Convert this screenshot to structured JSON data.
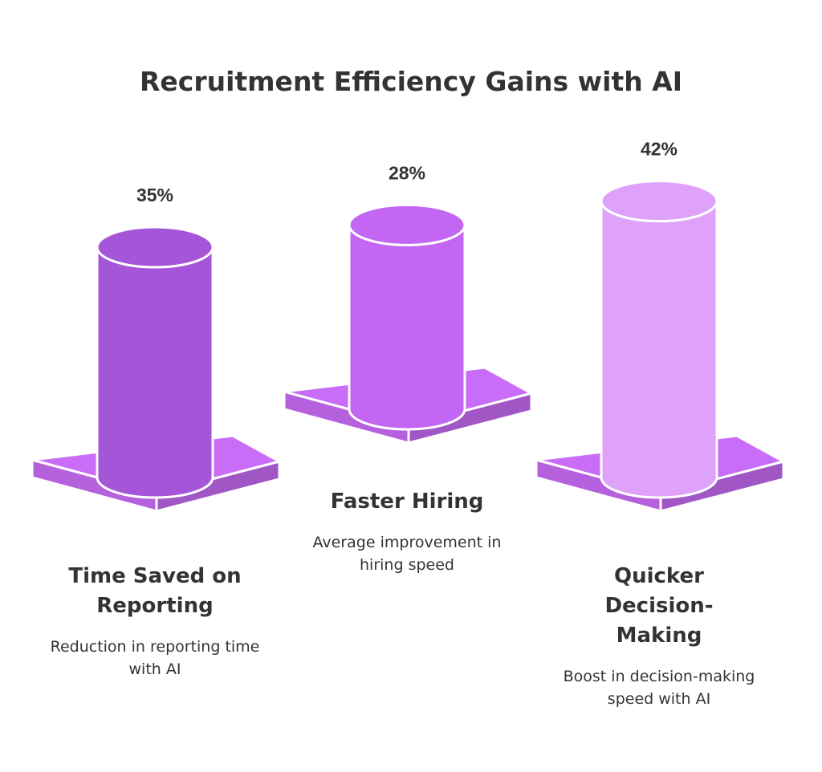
{
  "chart_data": {
    "type": "bar",
    "title": "Recruitment Efficiency Gains with AI",
    "categories": [
      "Time Saved on Reporting",
      "Faster Hiring",
      "Quicker Decision-Making"
    ],
    "descriptions": [
      "Reduction in reporting time with AI",
      "Average improvement in hiring speed",
      "Boost in decision-making speed with AI"
    ],
    "values": [
      35,
      28,
      42
    ],
    "value_labels": [
      "35%",
      "28%",
      "42%"
    ],
    "colors": [
      "#a455d8",
      "#c266f3",
      "#dea2fb"
    ],
    "platform_color": "#c96cf7"
  }
}
